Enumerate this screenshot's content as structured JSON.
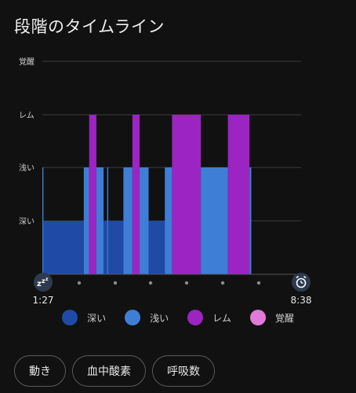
{
  "title": "段階のタイムライン",
  "chart_data": {
    "type": "area",
    "y_levels": [
      "覚醒",
      "レム",
      "浅い",
      "深い"
    ],
    "start_time": "1:27",
    "end_time": "8:38",
    "x_range_hours": [
      1.45,
      8.6333
    ],
    "segments": [
      {
        "stage": "浅い",
        "from": 1.45,
        "to": 1.48
      },
      {
        "stage": "深い",
        "from": 1.48,
        "to": 2.6
      },
      {
        "stage": "浅い",
        "from": 2.6,
        "to": 2.75
      },
      {
        "stage": "レム",
        "from": 2.75,
        "to": 2.95
      },
      {
        "stage": "浅い",
        "from": 2.95,
        "to": 3.15
      },
      {
        "stage": "深い",
        "from": 3.15,
        "to": 3.25
      },
      {
        "stage": "浅い",
        "from": 3.25,
        "to": 3.28
      },
      {
        "stage": "深い",
        "from": 3.28,
        "to": 3.7
      },
      {
        "stage": "浅い",
        "from": 3.7,
        "to": 3.95
      },
      {
        "stage": "レム",
        "from": 3.95,
        "to": 4.15
      },
      {
        "stage": "浅い",
        "from": 4.15,
        "to": 4.4
      },
      {
        "stage": "深い",
        "from": 4.4,
        "to": 4.85
      },
      {
        "stage": "浅い",
        "from": 4.85,
        "to": 5.05
      },
      {
        "stage": "レム",
        "from": 5.05,
        "to": 5.85
      },
      {
        "stage": "浅い",
        "from": 5.85,
        "to": 6.6
      },
      {
        "stage": "レム",
        "from": 6.6,
        "to": 7.2
      },
      {
        "stage": "浅い",
        "from": 7.2,
        "to": 7.25
      }
    ],
    "grid": true,
    "legend": "bottom"
  },
  "colors": {
    "深い": "#1f4aa6",
    "浅い": "#3f7ed6",
    "レム": "#9b24c2",
    "覚醒": "#e07ad8"
  },
  "legend": [
    {
      "label": "深い",
      "color": "#1f4aa6"
    },
    {
      "label": "浅い",
      "color": "#3f7ed6"
    },
    {
      "label": "レム",
      "color": "#9b24c2"
    },
    {
      "label": "覚醒",
      "color": "#e07ad8"
    }
  ],
  "icons": {
    "start": "sleep-zzz-icon",
    "end": "alarm-clock-icon"
  },
  "buttons": [
    {
      "label": "動き"
    },
    {
      "label": "血中酸素"
    },
    {
      "label": "呼吸数"
    }
  ]
}
